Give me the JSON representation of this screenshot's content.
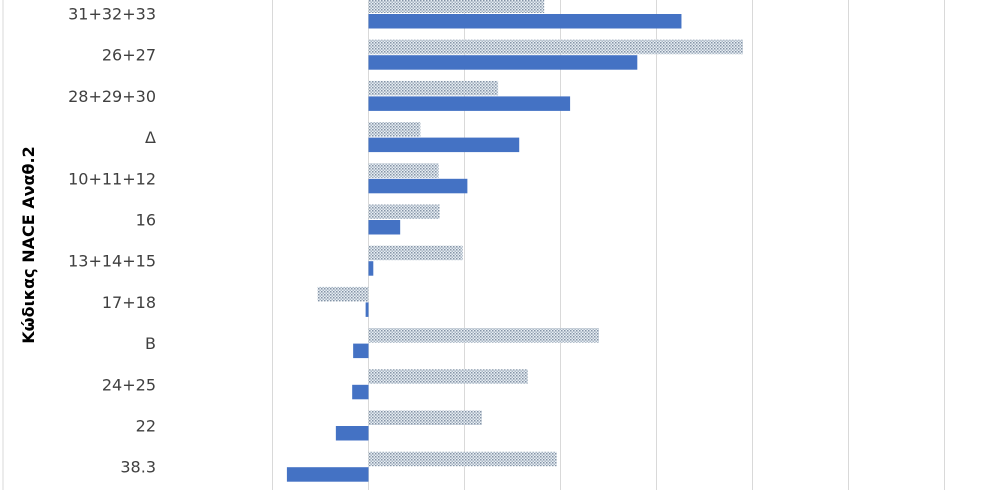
{
  "chart_data": {
    "type": "bar",
    "orientation": "horizontal",
    "ylabel": "Κώδικας NACE Αναθ.2",
    "categories": [
      "31+32+33",
      "26+27",
      "28+29+30",
      "Δ",
      "10+11+12",
      "16",
      "13+14+15",
      "17+18",
      "B",
      "24+25",
      "22",
      "38.3"
    ],
    "series": [
      {
        "style": "dotted",
        "values": [
          18.3,
          39.0,
          13.5,
          5.4,
          7.3,
          7.4,
          9.8,
          -5.3,
          24.0,
          16.6,
          11.8,
          19.6
        ]
      },
      {
        "style": "solid",
        "values": [
          32.6,
          28.0,
          21.0,
          15.7,
          10.3,
          3.3,
          0.5,
          -0.3,
          -1.6,
          -1.7,
          -3.4,
          -8.5
        ]
      }
    ],
    "colors": {
      "solid": "#4472c4",
      "dotted": "#7f8fa6"
    },
    "grid": true,
    "gridlines_at": [
      -10,
      0,
      10,
      20,
      30,
      40,
      50,
      60
    ],
    "legend": "none"
  }
}
